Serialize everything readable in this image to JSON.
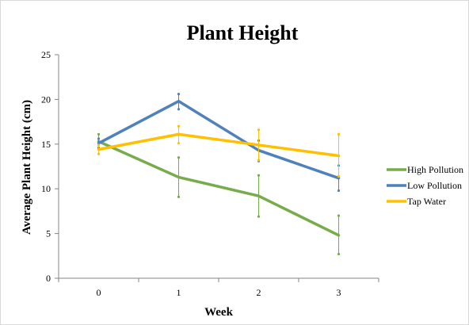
{
  "chart_data": {
    "type": "line",
    "title": "Plant Height",
    "xlabel": "Week",
    "ylabel": "Average Plant Height (cm)",
    "categories": [
      "0",
      "1",
      "2",
      "3"
    ],
    "ylim": [
      0,
      25
    ],
    "yticks": [
      "0",
      "5",
      "10",
      "15",
      "20",
      "25"
    ],
    "grid": false,
    "legend_position": "right",
    "series": [
      {
        "name": "High Pollution",
        "color": "#77AC4A",
        "values": [
          15.3,
          11.3,
          9.2,
          4.8
        ],
        "error_low": [
          14.5,
          9.1,
          6.9,
          2.7
        ],
        "error_high": [
          16.1,
          13.5,
          11.5,
          7.0
        ]
      },
      {
        "name": "Low Pollution",
        "color": "#4F81BD",
        "values": [
          15.1,
          19.8,
          14.3,
          11.2
        ],
        "error_low": [
          14.6,
          18.9,
          13.1,
          9.8
        ],
        "error_high": [
          15.6,
          20.6,
          15.4,
          12.6
        ]
      },
      {
        "name": "Tap Water",
        "color": "#FFC000",
        "values": [
          14.4,
          16.1,
          14.9,
          13.7
        ],
        "error_low": [
          13.9,
          15.1,
          13.2,
          11.4
        ],
        "error_high": [
          14.9,
          17.0,
          16.6,
          16.1
        ]
      }
    ]
  }
}
